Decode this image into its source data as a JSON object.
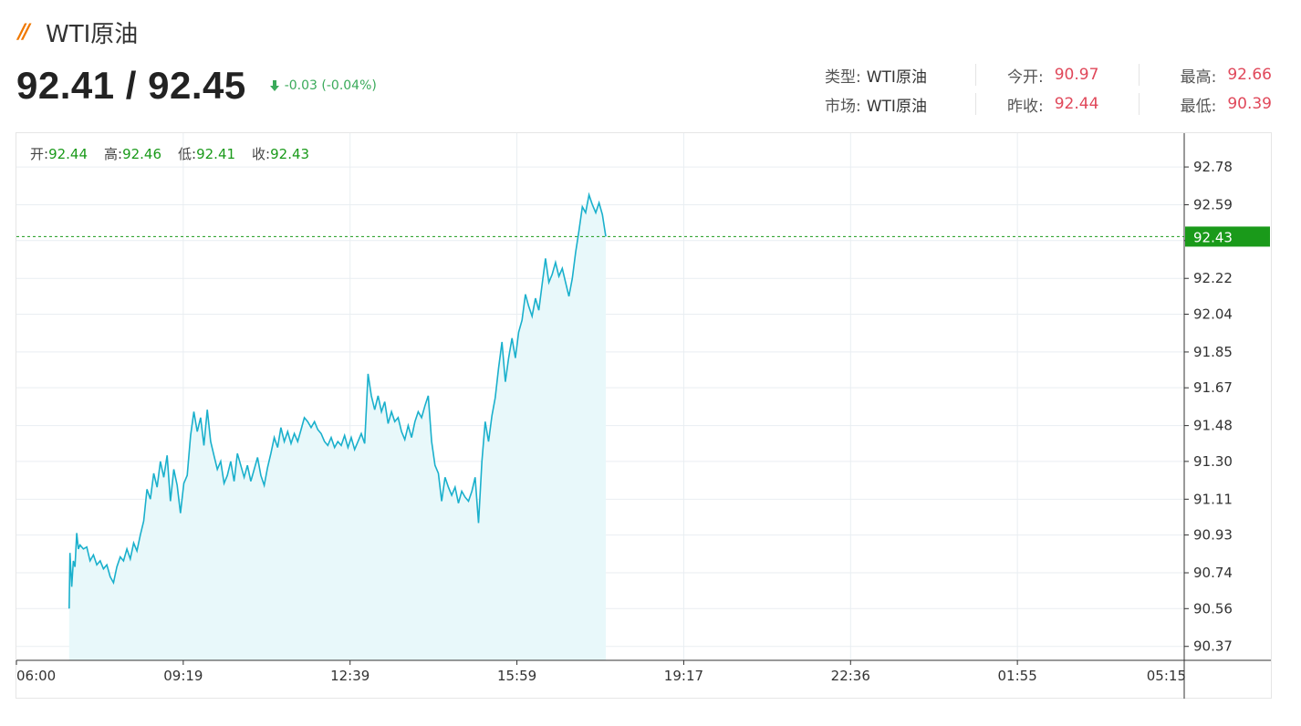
{
  "header": {
    "title": "WTI原油",
    "bid_ask": "92.41 / 92.45",
    "change": "-0.03 (-0.04%)"
  },
  "info": {
    "type_label": "类型:",
    "type_value": "WTI原油",
    "market_label": "市场:",
    "market_value": "WTI原油",
    "open_label": "今开:",
    "open_value": "90.97",
    "prev_close_label": "昨收:",
    "prev_close_value": "92.44",
    "high_label": "最高:",
    "high_value": "92.66",
    "low_label": "最低:",
    "low_value": "90.39"
  },
  "ohlc": {
    "open_label": "开:",
    "open_value": "92.44",
    "high_label": "高:",
    "high_value": "92.46",
    "low_label": "低:",
    "low_value": "92.41",
    "close_label": "收:",
    "close_value": "92.43"
  },
  "colors": {
    "line": "#1ab0cc",
    "area": "#e8f8fa",
    "current_price": "#1a9a1a",
    "up_red": "#e0485a",
    "down_green": "#3aaa5a"
  },
  "chart_data": {
    "type": "area",
    "x_ticks": [
      "06:00",
      "09:19",
      "12:39",
      "15:59",
      "19:17",
      "22:36",
      "01:55",
      "05:15"
    ],
    "y_ticks": [
      "92.78",
      "92.59",
      "92.41",
      "92.22",
      "92.04",
      "91.85",
      "91.67",
      "91.48",
      "91.30",
      "91.11",
      "90.93",
      "90.74",
      "90.56",
      "90.37"
    ],
    "ylim": [
      90.3,
      92.95
    ],
    "current_value": 92.43,
    "current_label": "92.43",
    "x_range_minutes": [
      0,
      1395
    ],
    "series": [
      {
        "points": [
          [
            63,
            90.56
          ],
          [
            64,
            90.84
          ],
          [
            66,
            90.67
          ],
          [
            68,
            90.8
          ],
          [
            70,
            90.77
          ],
          [
            72,
            90.94
          ],
          [
            74,
            90.86
          ],
          [
            76,
            90.88
          ],
          [
            80,
            90.86
          ],
          [
            84,
            90.87
          ],
          [
            88,
            90.8
          ],
          [
            92,
            90.83
          ],
          [
            96,
            90.78
          ],
          [
            100,
            90.8
          ],
          [
            104,
            90.76
          ],
          [
            108,
            90.78
          ],
          [
            112,
            90.72
          ],
          [
            116,
            90.69
          ],
          [
            120,
            90.77
          ],
          [
            124,
            90.82
          ],
          [
            128,
            90.8
          ],
          [
            132,
            90.86
          ],
          [
            136,
            90.81
          ],
          [
            140,
            90.89
          ],
          [
            144,
            90.85
          ],
          [
            148,
            90.93
          ],
          [
            152,
            91.0
          ],
          [
            156,
            91.16
          ],
          [
            160,
            91.11
          ],
          [
            164,
            91.24
          ],
          [
            168,
            91.17
          ],
          [
            172,
            91.3
          ],
          [
            176,
            91.22
          ],
          [
            180,
            91.33
          ],
          [
            184,
            91.1
          ],
          [
            188,
            91.26
          ],
          [
            192,
            91.18
          ],
          [
            196,
            91.04
          ],
          [
            200,
            91.19
          ],
          [
            204,
            91.23
          ],
          [
            208,
            91.43
          ],
          [
            212,
            91.55
          ],
          [
            216,
            91.45
          ],
          [
            220,
            91.52
          ],
          [
            224,
            91.38
          ],
          [
            228,
            91.56
          ],
          [
            232,
            91.4
          ],
          [
            236,
            91.33
          ],
          [
            240,
            91.26
          ],
          [
            244,
            91.3
          ],
          [
            248,
            91.19
          ],
          [
            252,
            91.23
          ],
          [
            256,
            91.3
          ],
          [
            260,
            91.2
          ],
          [
            264,
            91.34
          ],
          [
            268,
            91.28
          ],
          [
            272,
            91.22
          ],
          [
            276,
            91.28
          ],
          [
            280,
            91.2
          ],
          [
            284,
            91.26
          ],
          [
            288,
            91.32
          ],
          [
            292,
            91.23
          ],
          [
            296,
            91.18
          ],
          [
            300,
            91.27
          ],
          [
            304,
            91.34
          ],
          [
            308,
            91.42
          ],
          [
            312,
            91.37
          ],
          [
            316,
            91.47
          ],
          [
            320,
            91.4
          ],
          [
            324,
            91.45
          ],
          [
            328,
            91.39
          ],
          [
            332,
            91.44
          ],
          [
            336,
            91.4
          ],
          [
            340,
            91.46
          ],
          [
            344,
            91.52
          ],
          [
            348,
            91.5
          ],
          [
            352,
            91.47
          ],
          [
            356,
            91.5
          ],
          [
            360,
            91.46
          ],
          [
            364,
            91.44
          ],
          [
            368,
            91.4
          ],
          [
            372,
            91.38
          ],
          [
            376,
            91.42
          ],
          [
            380,
            91.37
          ],
          [
            384,
            91.4
          ],
          [
            388,
            91.38
          ],
          [
            392,
            91.43
          ],
          [
            396,
            91.37
          ],
          [
            400,
            91.42
          ],
          [
            404,
            91.36
          ],
          [
            408,
            91.4
          ],
          [
            412,
            91.44
          ],
          [
            416,
            91.39
          ],
          [
            420,
            91.74
          ],
          [
            424,
            91.63
          ],
          [
            428,
            91.56
          ],
          [
            432,
            91.63
          ],
          [
            436,
            91.55
          ],
          [
            440,
            91.6
          ],
          [
            444,
            91.49
          ],
          [
            448,
            91.55
          ],
          [
            452,
            91.5
          ],
          [
            456,
            91.52
          ],
          [
            460,
            91.45
          ],
          [
            464,
            91.41
          ],
          [
            468,
            91.48
          ],
          [
            472,
            91.42
          ],
          [
            476,
            91.5
          ],
          [
            480,
            91.55
          ],
          [
            484,
            91.52
          ],
          [
            488,
            91.58
          ],
          [
            492,
            91.63
          ],
          [
            496,
            91.4
          ],
          [
            500,
            91.28
          ],
          [
            504,
            91.24
          ],
          [
            508,
            91.1
          ],
          [
            512,
            91.22
          ],
          [
            516,
            91.17
          ],
          [
            520,
            91.13
          ],
          [
            524,
            91.17
          ],
          [
            528,
            91.09
          ],
          [
            532,
            91.15
          ],
          [
            536,
            91.12
          ],
          [
            540,
            91.1
          ],
          [
            544,
            91.15
          ],
          [
            548,
            91.22
          ],
          [
            552,
            90.99
          ],
          [
            556,
            91.3
          ],
          [
            560,
            91.5
          ],
          [
            564,
            91.4
          ],
          [
            568,
            91.53
          ],
          [
            572,
            91.62
          ],
          [
            576,
            91.77
          ],
          [
            580,
            91.9
          ],
          [
            584,
            91.7
          ],
          [
            588,
            91.82
          ],
          [
            592,
            91.92
          ],
          [
            596,
            91.82
          ],
          [
            600,
            91.95
          ],
          [
            604,
            92.01
          ],
          [
            608,
            92.14
          ],
          [
            612,
            92.08
          ],
          [
            616,
            92.03
          ],
          [
            620,
            92.12
          ],
          [
            624,
            92.06
          ],
          [
            628,
            92.19
          ],
          [
            632,
            92.32
          ],
          [
            636,
            92.2
          ],
          [
            640,
            92.24
          ],
          [
            644,
            92.3
          ],
          [
            648,
            92.23
          ],
          [
            652,
            92.27
          ],
          [
            656,
            92.2
          ],
          [
            660,
            92.13
          ],
          [
            664,
            92.22
          ],
          [
            668,
            92.35
          ],
          [
            672,
            92.46
          ],
          [
            676,
            92.58
          ],
          [
            680,
            92.55
          ],
          [
            684,
            92.64
          ],
          [
            688,
            92.59
          ],
          [
            692,
            92.55
          ],
          [
            696,
            92.6
          ],
          [
            700,
            92.54
          ],
          [
            704,
            92.43
          ]
        ]
      }
    ]
  }
}
